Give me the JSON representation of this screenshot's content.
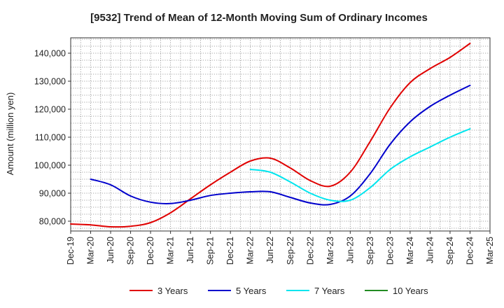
{
  "chart_data": {
    "type": "line",
    "title": "[9532]  Trend of Mean of 12-Month Moving Sum of Ordinary Incomes",
    "xlabel": "",
    "ylabel": "Amount (million yen)",
    "categories": [
      "Dec-19",
      "Mar-20",
      "Jun-20",
      "Sep-20",
      "Dec-20",
      "Mar-21",
      "Jun-21",
      "Sep-21",
      "Dec-21",
      "Mar-22",
      "Jun-22",
      "Sep-22",
      "Dec-22",
      "Mar-23",
      "Jun-23",
      "Sep-23",
      "Dec-23",
      "Mar-24",
      "Jun-24",
      "Sep-24",
      "Dec-24",
      "Mar-25"
    ],
    "ylim": [
      76500,
      145500
    ],
    "yticks": [
      80000,
      90000,
      100000,
      110000,
      120000,
      130000,
      140000
    ],
    "ytick_labels": [
      "80,000",
      "90,000",
      "100,000",
      "110,000",
      "120,000",
      "130,000",
      "140,000"
    ],
    "grid": true,
    "legend_position": "bottom",
    "series": [
      {
        "name": "3 Years",
        "color": "#e00000",
        "values": [
          79000,
          78700,
          78000,
          78200,
          79500,
          83000,
          88000,
          93000,
          97500,
          101500,
          102500,
          99000,
          94500,
          92500,
          97500,
          108500,
          120500,
          129500,
          134500,
          138500,
          143500,
          null
        ]
      },
      {
        "name": "5 Years",
        "color": "#0000cc",
        "values": [
          null,
          95000,
          93000,
          89000,
          86800,
          86300,
          87500,
          89200,
          90000,
          90500,
          90500,
          88500,
          86500,
          86000,
          89000,
          97000,
          107500,
          115500,
          121000,
          125000,
          128500,
          null
        ]
      },
      {
        "name": "7 Years",
        "color": "#00e5ee",
        "values": [
          null,
          null,
          null,
          null,
          null,
          null,
          null,
          null,
          null,
          98500,
          97500,
          94000,
          90000,
          87500,
          87500,
          92000,
          98500,
          103000,
          106500,
          110000,
          113000,
          null
        ]
      },
      {
        "name": "10 Years",
        "color": "#228b22",
        "values": [
          null,
          null,
          null,
          null,
          null,
          null,
          null,
          null,
          null,
          null,
          null,
          null,
          null,
          null,
          null,
          null,
          null,
          null,
          null,
          null,
          null,
          null
        ]
      }
    ]
  }
}
